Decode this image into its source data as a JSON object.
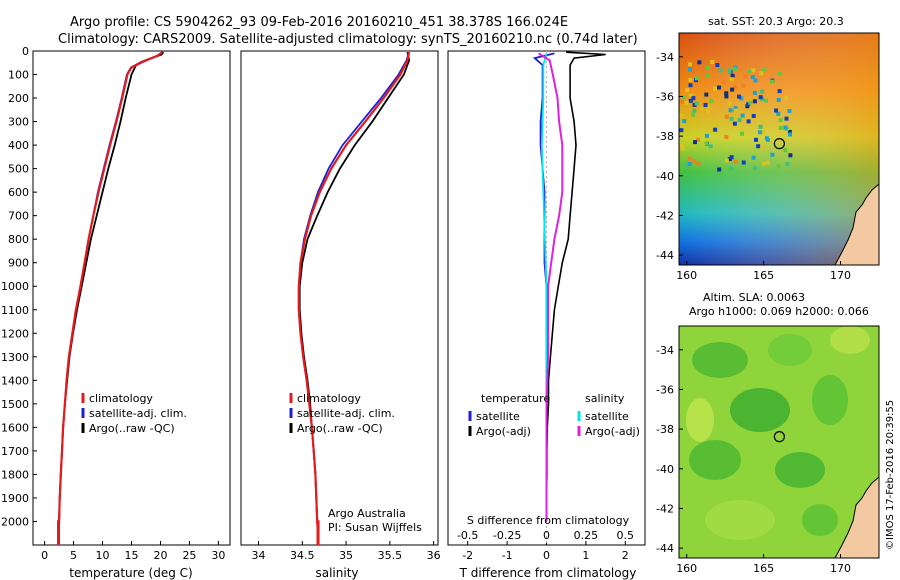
{
  "header": {
    "line1": "Argo profile: CS 5904262_93 09-Feb-2016 20160210_451 38.378S 166.024E",
    "line2": "Climatology: CARS2009. Satellite-adjusted climatology: synTS_20160210.nc (0.74d later)"
  },
  "side_stamp": "©IMOS 17-Feb-2016 20:39:55",
  "colors": {
    "climatology": "#e41a1c",
    "satellite": "#1f1fd6",
    "argo": "#000000",
    "sal_sat": "#00e5ee",
    "sal_argo": "#e020e0"
  },
  "chart_data": [
    {
      "type": "line",
      "panel": "temperature",
      "xlabel": "temperature (deg C)",
      "ylabel": "",
      "xlim": [
        -2,
        32
      ],
      "ylim": [
        2100,
        0
      ],
      "xticks": [
        "0",
        "5",
        "10",
        "15",
        "20",
        "25",
        "30"
      ],
      "yticks": [
        "0",
        "100",
        "200",
        "300",
        "400",
        "500",
        "600",
        "700",
        "800",
        "900",
        "1000",
        "1100",
        "1200",
        "1300",
        "1400",
        "1500",
        "1600",
        "1700",
        "1800",
        "1900",
        "2000"
      ],
      "legend": [
        "climatology",
        "satellite-adj. clim.",
        "Argo(..raw -QC)"
      ],
      "legend_position": "lower-right",
      "series": [
        {
          "name": "climatology",
          "values": [
            [
              20.3,
              5
            ],
            [
              19.5,
              20
            ],
            [
              17,
              45
            ],
            [
              15,
              70
            ],
            [
              14.3,
              100
            ],
            [
              13.4,
              200
            ],
            [
              12.4,
              300
            ],
            [
              11.3,
              400
            ],
            [
              10.3,
              500
            ],
            [
              9.3,
              600
            ],
            [
              8.4,
              700
            ],
            [
              7.6,
              800
            ],
            [
              6.9,
              900
            ],
            [
              6.2,
              1000
            ],
            [
              5.4,
              1100
            ],
            [
              4.8,
              1200
            ],
            [
              4.2,
              1300
            ],
            [
              3.8,
              1400
            ],
            [
              3.5,
              1500
            ],
            [
              3.2,
              1600
            ],
            [
              3.0,
              1700
            ],
            [
              2.8,
              1800
            ],
            [
              2.6,
              1900
            ],
            [
              2.5,
              2000
            ],
            [
              2.4,
              2050
            ]
          ]
        },
        {
          "name": "satellite-adj. clim.",
          "values": [
            [
              20.3,
              5
            ],
            [
              19.3,
              22
            ],
            [
              16.8,
              45
            ],
            [
              14.9,
              70
            ],
            [
              14.2,
              100
            ],
            [
              13.3,
              200
            ],
            [
              12.3,
              300
            ],
            [
              11.2,
              400
            ],
            [
              10.2,
              500
            ],
            [
              9.2,
              600
            ],
            [
              8.4,
              700
            ],
            [
              7.6,
              800
            ],
            [
              6.9,
              900
            ],
            [
              6.2,
              1000
            ],
            [
              5.4,
              1100
            ],
            [
              4.8,
              1200
            ],
            [
              4.2,
              1300
            ],
            [
              3.8,
              1400
            ],
            [
              3.5,
              1500
            ],
            [
              3.2,
              1600
            ],
            [
              3.0,
              1700
            ],
            [
              2.8,
              1800
            ],
            [
              2.6,
              1900
            ],
            [
              2.5,
              2000
            ],
            [
              2.4,
              2030
            ]
          ]
        },
        {
          "name": "Argo(..raw -QC)",
          "values": [
            [
              20.5,
              5
            ],
            [
              20.2,
              15
            ],
            [
              18,
              35
            ],
            [
              15.8,
              60
            ],
            [
              15,
              100
            ],
            [
              14,
              200
            ],
            [
              13.1,
              300
            ],
            [
              12.1,
              400
            ],
            [
              11,
              500
            ],
            [
              10,
              600
            ],
            [
              9,
              700
            ],
            [
              8,
              800
            ],
            [
              7.2,
              900
            ],
            [
              6.4,
              1000
            ],
            [
              5.6,
              1100
            ],
            [
              4.9,
              1200
            ],
            [
              4.3,
              1300
            ],
            [
              3.9,
              1400
            ],
            [
              3.5,
              1500
            ],
            [
              3.2,
              1600
            ],
            [
              3.0,
              1700
            ],
            [
              2.8,
              1800
            ],
            [
              2.6,
              1900
            ],
            [
              2.5,
              2000
            ]
          ]
        }
      ]
    },
    {
      "type": "line",
      "panel": "salinity",
      "xlabel": "salinity",
      "ylabel": "",
      "xlim": [
        33.8,
        36.05
      ],
      "ylim": [
        2100,
        0
      ],
      "xticks": [
        "34",
        "34.5",
        "35",
        "35.5",
        "36"
      ],
      "legend": [
        "climatology",
        "satellite-adj. clim.",
        "Argo(..raw -QC)"
      ],
      "legend_position": "lower-right",
      "annotation": [
        "Argo Australia",
        "PI: Susan Wijffels"
      ],
      "series": [
        {
          "name": "climatology",
          "values": [
            [
              35.72,
              5
            ],
            [
              35.7,
              40
            ],
            [
              35.62,
              100
            ],
            [
              35.43,
              200
            ],
            [
              35.22,
              300
            ],
            [
              35.0,
              400
            ],
            [
              34.83,
              500
            ],
            [
              34.7,
              600
            ],
            [
              34.6,
              700
            ],
            [
              34.53,
              800
            ],
            [
              34.48,
              900
            ],
            [
              34.46,
              1000
            ],
            [
              34.46,
              1100
            ],
            [
              34.48,
              1200
            ],
            [
              34.51,
              1300
            ],
            [
              34.55,
              1400
            ],
            [
              34.58,
              1500
            ],
            [
              34.61,
              1600
            ],
            [
              34.63,
              1700
            ],
            [
              34.65,
              1800
            ],
            [
              34.66,
              1900
            ],
            [
              34.67,
              2000
            ],
            [
              34.68,
              2050
            ]
          ]
        },
        {
          "name": "satellite-adj. clim.",
          "values": [
            [
              35.72,
              5
            ],
            [
              35.69,
              40
            ],
            [
              35.6,
              100
            ],
            [
              35.4,
              200
            ],
            [
              35.18,
              300
            ],
            [
              34.96,
              400
            ],
            [
              34.8,
              500
            ],
            [
              34.68,
              600
            ],
            [
              34.59,
              700
            ],
            [
              34.52,
              800
            ],
            [
              34.48,
              900
            ],
            [
              34.46,
              1000
            ],
            [
              34.46,
              1100
            ],
            [
              34.48,
              1200
            ],
            [
              34.51,
              1300
            ],
            [
              34.55,
              1400
            ],
            [
              34.58,
              1500
            ],
            [
              34.61,
              1600
            ],
            [
              34.63,
              1700
            ],
            [
              34.65,
              1800
            ],
            [
              34.66,
              1900
            ],
            [
              34.67,
              2000
            ],
            [
              34.68,
              2030
            ]
          ]
        },
        {
          "name": "Argo(..raw -QC)",
          "values": [
            [
              35.7,
              5
            ],
            [
              35.72,
              40
            ],
            [
              35.66,
              100
            ],
            [
              35.48,
              200
            ],
            [
              35.3,
              300
            ],
            [
              35.1,
              400
            ],
            [
              34.93,
              500
            ],
            [
              34.79,
              600
            ],
            [
              34.67,
              700
            ],
            [
              34.56,
              800
            ],
            [
              34.5,
              900
            ],
            [
              34.47,
              1000
            ],
            [
              34.47,
              1100
            ],
            [
              34.49,
              1200
            ],
            [
              34.52,
              1300
            ],
            [
              34.56,
              1400
            ],
            [
              34.59,
              1500
            ],
            [
              34.61,
              1600
            ],
            [
              34.63,
              1700
            ],
            [
              34.65,
              1800
            ],
            [
              34.66,
              1900
            ],
            [
              34.67,
              2000
            ]
          ]
        }
      ]
    },
    {
      "type": "line",
      "panel": "difference",
      "xlabel": "T difference from climatology",
      "xlabel_top": "S difference from climatology",
      "xlim": [
        -2.5,
        2.5
      ],
      "ylim": [
        2100,
        0
      ],
      "xticks": [
        "-2",
        "-1",
        "0",
        "1",
        "2"
      ],
      "xticks_top": [
        "-0.5",
        "-0.25",
        "0",
        "0.25",
        "0.5"
      ],
      "legend_groups": [
        {
          "title": "temperature",
          "items": [
            "satellite",
            "Argo(-adj)"
          ]
        },
        {
          "title": "salinity",
          "items": [
            "satellite",
            "Argo(-adj)"
          ]
        }
      ],
      "legend_position": "lower",
      "series": [
        {
          "name": "temperature satellite",
          "values": [
            [
              0.2,
              10
            ],
            [
              -0.3,
              30
            ],
            [
              -0.1,
              60
            ],
            [
              -0.1,
              100
            ],
            [
              -0.1,
              200
            ],
            [
              -0.15,
              300
            ],
            [
              -0.15,
              400
            ],
            [
              -0.1,
              500
            ],
            [
              -0.05,
              600
            ],
            [
              -0.05,
              700
            ],
            [
              -0.05,
              800
            ],
            [
              -0.05,
              900
            ],
            [
              0,
              1000
            ],
            [
              0,
              1200
            ],
            [
              0,
              1500
            ],
            [
              0,
              2000
            ]
          ]
        },
        {
          "name": "temperature Argo(-adj)",
          "values": [
            [
              0.5,
              5
            ],
            [
              1.5,
              15
            ],
            [
              0.7,
              30
            ],
            [
              0.6,
              60
            ],
            [
              0.6,
              100
            ],
            [
              0.6,
              200
            ],
            [
              0.7,
              300
            ],
            [
              0.75,
              400
            ],
            [
              0.7,
              500
            ],
            [
              0.65,
              600
            ],
            [
              0.6,
              700
            ],
            [
              0.55,
              800
            ],
            [
              0.4,
              900
            ],
            [
              0.3,
              1000
            ],
            [
              0.2,
              1100
            ],
            [
              0.15,
              1200
            ],
            [
              0.1,
              1300
            ],
            [
              0.05,
              1400
            ],
            [
              0.05,
              1500
            ],
            [
              0.02,
              1600
            ],
            [
              0.01,
              1700
            ],
            [
              0.01,
              1800
            ],
            [
              0,
              1900
            ],
            [
              0,
              2000
            ]
          ]
        },
        {
          "name": "salinity satellite",
          "values": [
            [
              0,
              10
            ],
            [
              -0.02,
              60
            ],
            [
              -0.02,
              200
            ],
            [
              -0.03,
              400
            ],
            [
              -0.02,
              600
            ],
            [
              -0.01,
              800
            ],
            [
              0,
              1000
            ],
            [
              0,
              1500
            ],
            [
              0,
              2000
            ]
          ]
        },
        {
          "name": "salinity Argo(-adj)",
          "values": [
            [
              -0.05,
              10
            ],
            [
              0.02,
              40
            ],
            [
              0.04,
              100
            ],
            [
              0.07,
              200
            ],
            [
              0.08,
              300
            ],
            [
              0.1,
              400
            ],
            [
              0.1,
              500
            ],
            [
              0.1,
              600
            ],
            [
              0.08,
              700
            ],
            [
              0.05,
              800
            ],
            [
              0.03,
              900
            ],
            [
              0.01,
              1000
            ],
            [
              0.01,
              1100
            ],
            [
              0.01,
              1200
            ],
            [
              0.01,
              1300
            ],
            [
              0,
              1500
            ],
            [
              0,
              2000
            ]
          ]
        }
      ]
    },
    {
      "type": "heatmap",
      "panel": "sst-map",
      "title": "sat. SST: 20.3 Argo: 20.3",
      "xticks": [
        "160",
        "165",
        "170"
      ],
      "yticks": [
        "-34",
        "-36",
        "-38",
        "-40",
        "-42",
        "-44"
      ],
      "xlim": [
        159.5,
        172.5
      ],
      "ylim": [
        -44.5,
        -32.8
      ],
      "marker": {
        "lon": 166.024,
        "lat": -38.378
      }
    },
    {
      "type": "heatmap",
      "panel": "sla-map",
      "title": "Altim. SLA: 0.0063",
      "subtitle": "Argo h1000: 0.069 h2000: 0.066",
      "xticks": [
        "160",
        "165",
        "170"
      ],
      "yticks": [
        "-34",
        "-36",
        "-38",
        "-40",
        "-42",
        "-44"
      ],
      "xlim": [
        159.5,
        172.5
      ],
      "ylim": [
        -44.5,
        -32.8
      ],
      "marker": {
        "lon": 166.024,
        "lat": -38.378
      }
    }
  ]
}
